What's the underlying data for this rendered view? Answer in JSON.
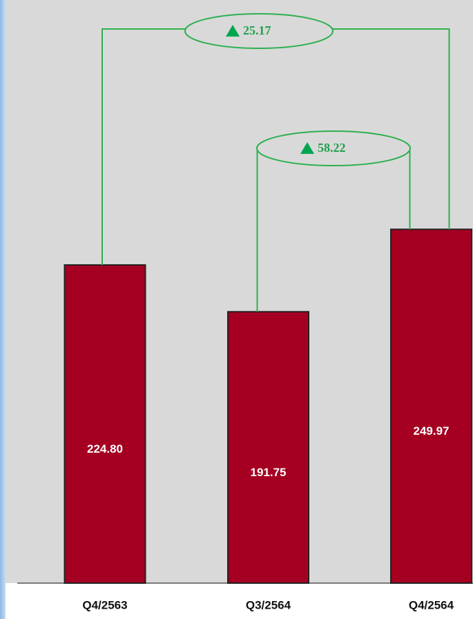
{
  "chart_data": {
    "type": "bar",
    "categories": [
      "Q4/2563",
      "Q3/2564",
      "Q4/2564"
    ],
    "values": [
      224.8,
      191.75,
      249.97
    ],
    "value_labels": [
      "224.80",
      "191.75",
      "249.97"
    ],
    "color": "#a50021",
    "ylim": [
      0,
      412
    ],
    "annotations": [
      {
        "value": 25.17
      },
      {
        "value": 58.22
      }
    ]
  }
}
